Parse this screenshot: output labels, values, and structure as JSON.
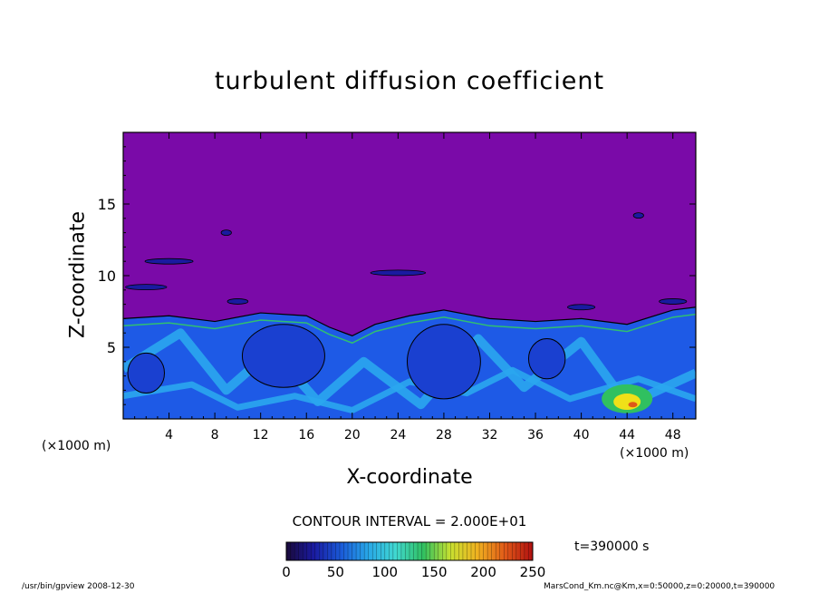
{
  "chart_data": {
    "type": "heatmap",
    "title": "turbulent diffusion coefficient",
    "xlabel": "X-coordinate",
    "ylabel": "Z-coordinate",
    "x_unit": "(×1000 m)",
    "z_unit": "(×1000 m)",
    "xlim": [
      0,
      50
    ],
    "ylim": [
      0,
      20
    ],
    "x_ticks": [
      4,
      8,
      12,
      16,
      20,
      24,
      28,
      32,
      36,
      40,
      44,
      48
    ],
    "y_ticks": [
      5,
      10,
      15
    ],
    "contour_interval": "CONTOUR INTERVAL = 2.000E+01",
    "time_label": "t=390000 s",
    "colorbar": {
      "min": 0,
      "max": 250,
      "ticks": [
        0,
        50,
        100,
        150,
        200,
        250
      ],
      "colors": [
        "#1a0a3a",
        "#1a1aa0",
        "#1a5ad8",
        "#28a8e8",
        "#40d8d0",
        "#30c060",
        "#c8e030",
        "#f0b020",
        "#e05818",
        "#b01010"
      ]
    },
    "colors": {
      "background_field": "#7a0aa8",
      "low_layer": "#1e5ae6",
      "mid_layer": "#2aa6ee",
      "high_patch": "#f0e018"
    },
    "mixed_layer_top": [
      {
        "x": 0,
        "z": 7.0
      },
      {
        "x": 4,
        "z": 7.2
      },
      {
        "x": 8,
        "z": 6.8
      },
      {
        "x": 12,
        "z": 7.4
      },
      {
        "x": 16,
        "z": 7.2
      },
      {
        "x": 18,
        "z": 6.4
      },
      {
        "x": 20,
        "z": 5.8
      },
      {
        "x": 22,
        "z": 6.6
      },
      {
        "x": 25,
        "z": 7.2
      },
      {
        "x": 28,
        "z": 7.6
      },
      {
        "x": 32,
        "z": 7.0
      },
      {
        "x": 36,
        "z": 6.8
      },
      {
        "x": 40,
        "z": 7.0
      },
      {
        "x": 44,
        "z": 6.6
      },
      {
        "x": 48,
        "z": 7.6
      },
      {
        "x": 50,
        "z": 7.8
      }
    ],
    "footer_left": "/usr/bin/gpview   2008-12-30",
    "footer_right": "MarsCond_Km.nc@Km,x=0:50000,z=0:20000,t=390000"
  }
}
